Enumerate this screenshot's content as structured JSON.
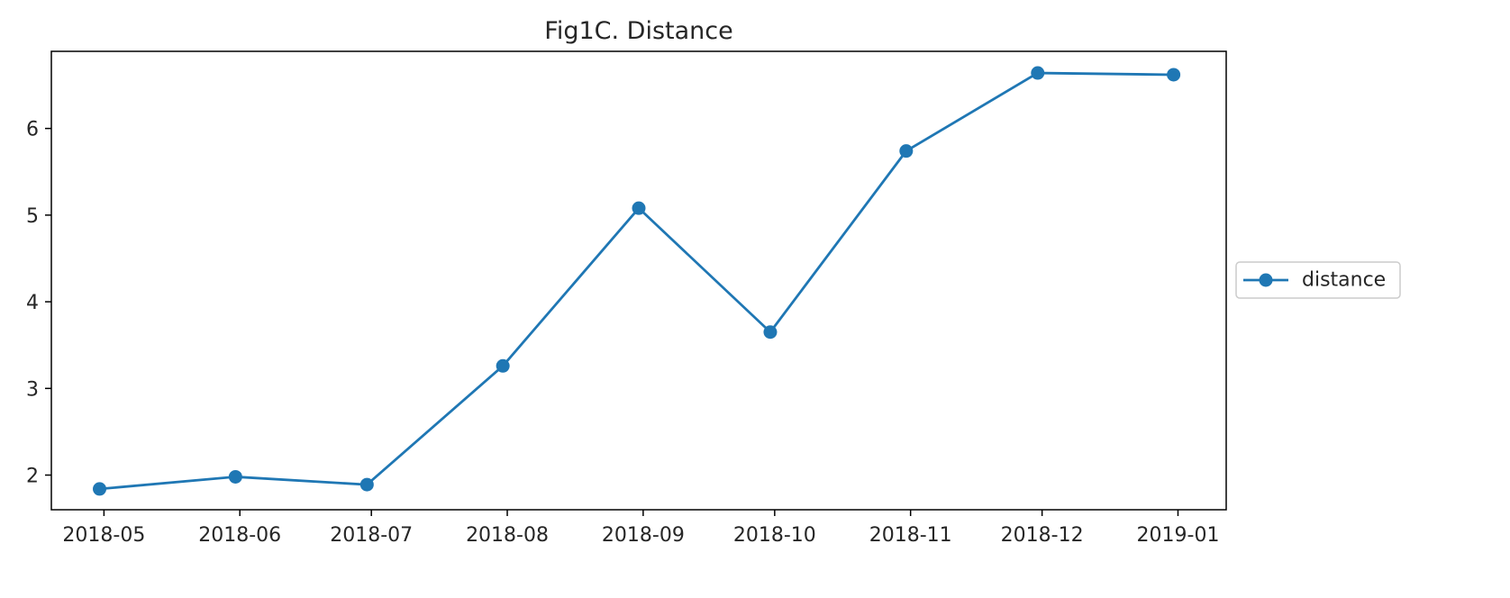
{
  "chart_data": {
    "type": "line",
    "title": "Fig1C. Distance",
    "xlabel": "",
    "ylabel": "",
    "x": [
      "2018-05-01",
      "2018-06-01",
      "2018-07-01",
      "2018-08-01",
      "2018-09-01",
      "2018-10-01",
      "2018-11-01",
      "2018-12-01",
      "2019-01-01"
    ],
    "x_tick_labels": [
      "2018-05",
      "2018-06",
      "2018-07",
      "2018-08",
      "2018-09",
      "2018-10",
      "2018-11",
      "2018-12",
      "2019-01"
    ],
    "series": [
      {
        "name": "distance",
        "marker": "circle",
        "color": "#1f77b4",
        "points": [
          {
            "x": "2018-04-30",
            "y": 1.84
          },
          {
            "x": "2018-05-31",
            "y": 1.98
          },
          {
            "x": "2018-06-30",
            "y": 1.89
          },
          {
            "x": "2018-07-31",
            "y": 3.26
          },
          {
            "x": "2018-08-31",
            "y": 5.08
          },
          {
            "x": "2018-09-30",
            "y": 3.65
          },
          {
            "x": "2018-10-31",
            "y": 5.74
          },
          {
            "x": "2018-11-30",
            "y": 6.64
          },
          {
            "x": "2018-12-31",
            "y": 6.62
          }
        ]
      }
    ],
    "y_ticks": [
      2,
      3,
      4,
      5,
      6
    ],
    "xlim": [
      "2018-04-19",
      "2019-01-12"
    ],
    "ylim": [
      1.6,
      6.89
    ],
    "grid": false,
    "legend_position": "center-right outside"
  }
}
